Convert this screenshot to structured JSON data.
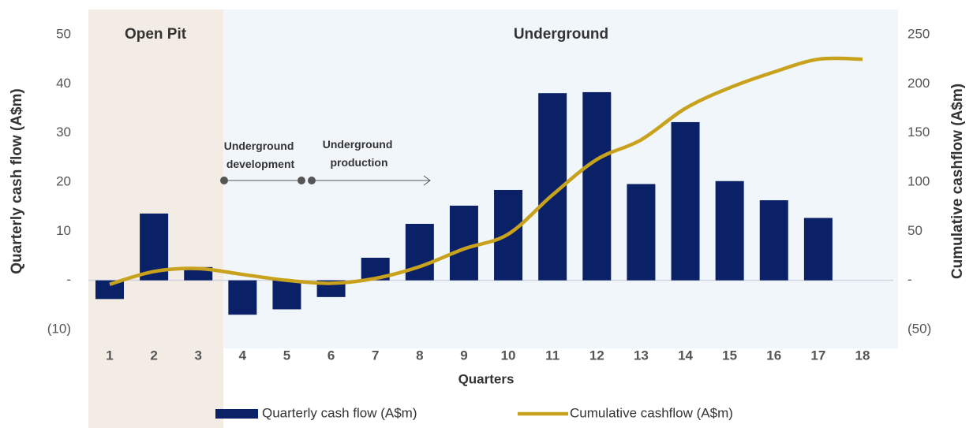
{
  "chart_data": {
    "type": "bar-line",
    "regions": [
      {
        "label": "Open Pit",
        "color": "#f3ece4"
      },
      {
        "label": "Underground",
        "color": "#f1f6fb"
      }
    ],
    "annotations": [
      {
        "lines": [
          "Underground",
          "development"
        ]
      },
      {
        "lines": [
          "Underground",
          "production"
        ]
      }
    ],
    "categories": [
      "1",
      "2",
      "3",
      "4",
      "5",
      "6",
      "7",
      "8",
      "9",
      "10",
      "11",
      "12",
      "13",
      "14",
      "15",
      "16",
      "17",
      "18"
    ],
    "series": [
      {
        "name": "Quarterly cash flow (A$m)",
        "type": "bar",
        "color": "#0a2167",
        "axis": "y",
        "values": [
          -3.8,
          13.6,
          2.7,
          -7,
          -5.9,
          -3.4,
          4.6,
          11.5,
          15.2,
          18.4,
          38.1,
          38.3,
          19.6,
          32.2,
          20.2,
          16.3,
          12.7,
          null
        ]
      },
      {
        "name": "Cumulative cashflow (A$m)",
        "type": "line",
        "color": "#c8a21c",
        "axis": "y2",
        "values": [
          -4,
          9,
          12,
          6,
          0,
          -3,
          2,
          14,
          32,
          47,
          87,
          123,
          143,
          175,
          196,
          212,
          225,
          225
        ]
      }
    ],
    "x_label": "Quarters",
    "y_label": "Quarterly cash flow (A$m)",
    "y2_label": "Cumulative cashflow (A$m)",
    "ylim": [
      -10,
      50
    ],
    "yticks": [
      {
        "value": -10,
        "label": "(10)"
      },
      {
        "value": 0,
        "label": "-"
      },
      10,
      20,
      30,
      40,
      50
    ],
    "y2lim": [
      -50,
      250
    ],
    "y2ticks": [
      {
        "value": -50,
        "label": "(50)"
      },
      {
        "value": 0,
        "label": "-"
      },
      50,
      100,
      150,
      200,
      250
    ]
  }
}
